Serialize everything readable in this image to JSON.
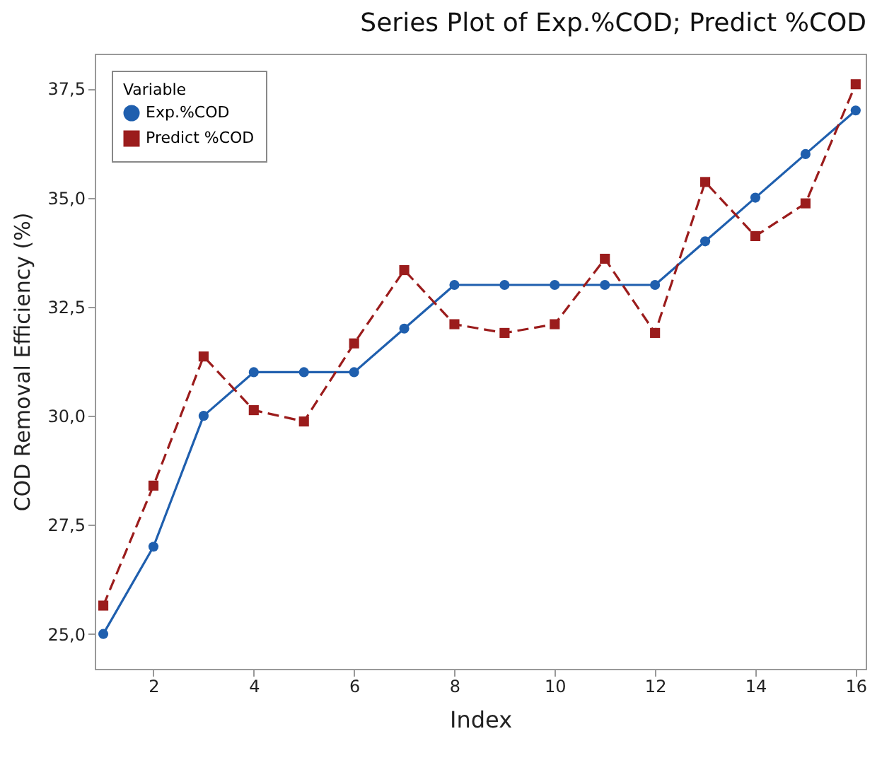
{
  "chart_data": {
    "type": "line",
    "title": "Series Plot of Exp.%COD; Predict %COD",
    "xlabel": "Index",
    "ylabel": "COD Removal Efficiency (%)",
    "legend_title": "Variable",
    "legend": "top left",
    "grid": false,
    "x": [
      1,
      2,
      3,
      4,
      5,
      6,
      7,
      8,
      9,
      10,
      11,
      12,
      13,
      14,
      15,
      16
    ],
    "xlim": [
      0.83,
      16.2
    ],
    "xticks": [
      2,
      4,
      6,
      8,
      10,
      12,
      14,
      16
    ],
    "ylim": [
      24.2,
      38.3
    ],
    "yticks": [
      {
        "value": 25,
        "label": "25,0"
      },
      {
        "value": 27.5,
        "label": "27,5"
      },
      {
        "value": 30,
        "label": "30,0"
      },
      {
        "value": 32.5,
        "label": "32,5"
      },
      {
        "value": 35,
        "label": "35,0"
      },
      {
        "value": 37.5,
        "label": "37,5"
      }
    ],
    "series": [
      {
        "name": "Exp.%COD",
        "color": "#1f5fae",
        "marker": "circle",
        "line_style": "solid",
        "values": [
          25,
          27,
          30,
          31,
          31,
          31,
          32,
          33,
          33,
          33,
          33,
          33,
          34,
          35,
          36,
          37
        ]
      },
      {
        "name": "Predict %COD",
        "color": "#9b1c1c",
        "marker": "square",
        "line_style": "dashed",
        "values": [
          25.65,
          28.4,
          31.36,
          30.13,
          29.87,
          31.66,
          33.34,
          32.1,
          31.9,
          32.1,
          33.6,
          31.9,
          35.36,
          34.12,
          34.87,
          37.6
        ]
      }
    ]
  }
}
